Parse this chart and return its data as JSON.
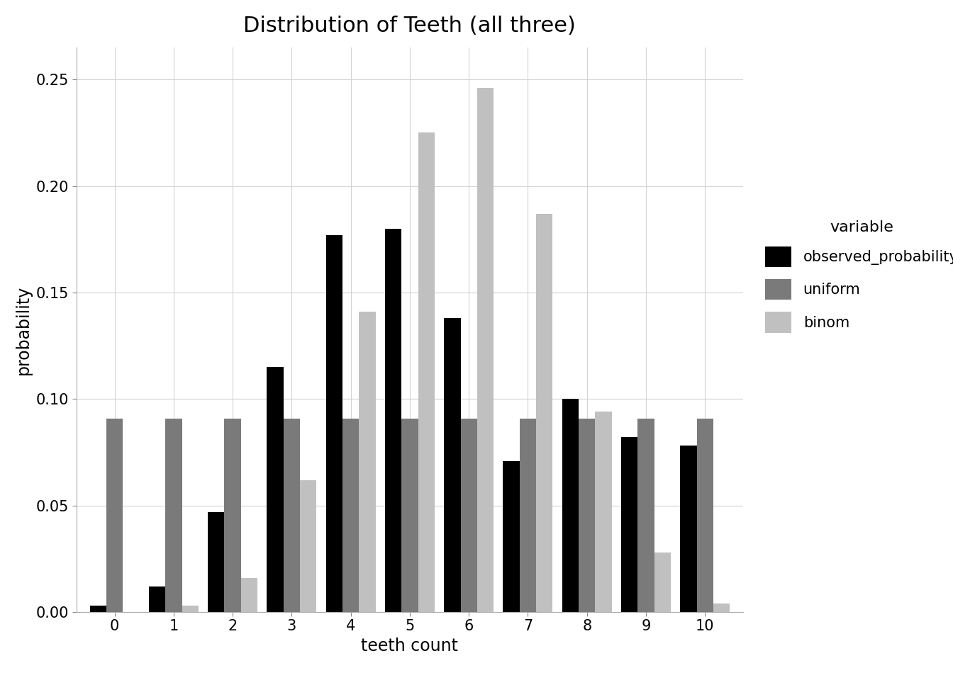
{
  "title": "Distribution of Teeth (all three)",
  "xlabel": "teeth count",
  "ylabel": "probability",
  "categories": [
    0,
    1,
    2,
    3,
    4,
    5,
    6,
    7,
    8,
    9,
    10
  ],
  "observed_probability": [
    0.003,
    0.012,
    0.047,
    0.115,
    0.177,
    0.18,
    0.138,
    0.071,
    0.1,
    0.082,
    0.078
  ],
  "uniform": [
    0.0909,
    0.0909,
    0.0909,
    0.0909,
    0.0909,
    0.0909,
    0.0909,
    0.0909,
    0.0909,
    0.0909,
    0.0909
  ],
  "binom": [
    0.0001,
    0.003,
    0.016,
    0.062,
    0.141,
    0.225,
    0.246,
    0.187,
    0.094,
    0.028,
    0.004
  ],
  "color_observed": "#000000",
  "color_uniform": "#7a7a7a",
  "color_binom": "#c0c0c0",
  "legend_title": "variable",
  "legend_labels": [
    "observed_probability",
    "uniform",
    "binom"
  ],
  "ylim": [
    0,
    0.265
  ],
  "yticks": [
    0.0,
    0.05,
    0.1,
    0.15,
    0.2,
    0.25
  ],
  "background_color": "#ffffff",
  "grid_color": "#d3d3d3",
  "title_fontsize": 22,
  "axis_label_fontsize": 17,
  "tick_fontsize": 15,
  "legend_fontsize": 15,
  "legend_title_fontsize": 16
}
